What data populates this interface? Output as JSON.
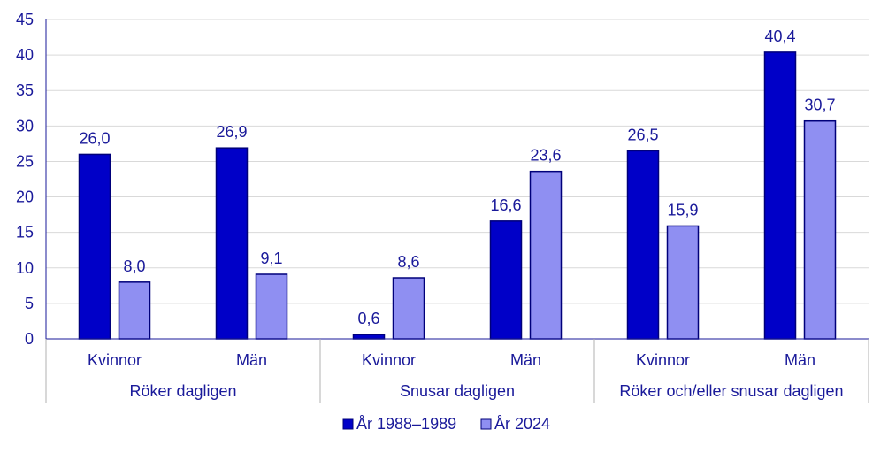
{
  "chart_data": {
    "type": "bar",
    "groups": [
      {
        "label": "Röker dagligen",
        "categories": [
          "Kvinnor",
          "Män"
        ]
      },
      {
        "label": "Snusar dagligen",
        "categories": [
          "Kvinnor",
          "Män"
        ]
      },
      {
        "label": "Röker och/eller snusar dagligen",
        "categories": [
          "Kvinnor",
          "Män"
        ]
      }
    ],
    "series": [
      {
        "name": "År 1988–1989",
        "values": [
          26.0,
          26.9,
          0.6,
          16.6,
          26.5,
          40.4
        ],
        "labels": [
          "26,0",
          "26,9",
          "0,6",
          "16,6",
          "26,5",
          "40,4"
        ],
        "color": "#0000c8"
      },
      {
        "name": "År 2024",
        "values": [
          8.0,
          9.1,
          8.6,
          23.6,
          15.9,
          30.7
        ],
        "labels": [
          "8,0",
          "9,1",
          "8,6",
          "23,6",
          "15,9",
          "30,7"
        ],
        "color": "#8f8ff2"
      }
    ],
    "ylim": [
      0,
      45
    ],
    "yticks": [
      0,
      5,
      10,
      15,
      20,
      25,
      30,
      35,
      40,
      45
    ],
    "grid": true,
    "legend_position": "bottom"
  }
}
